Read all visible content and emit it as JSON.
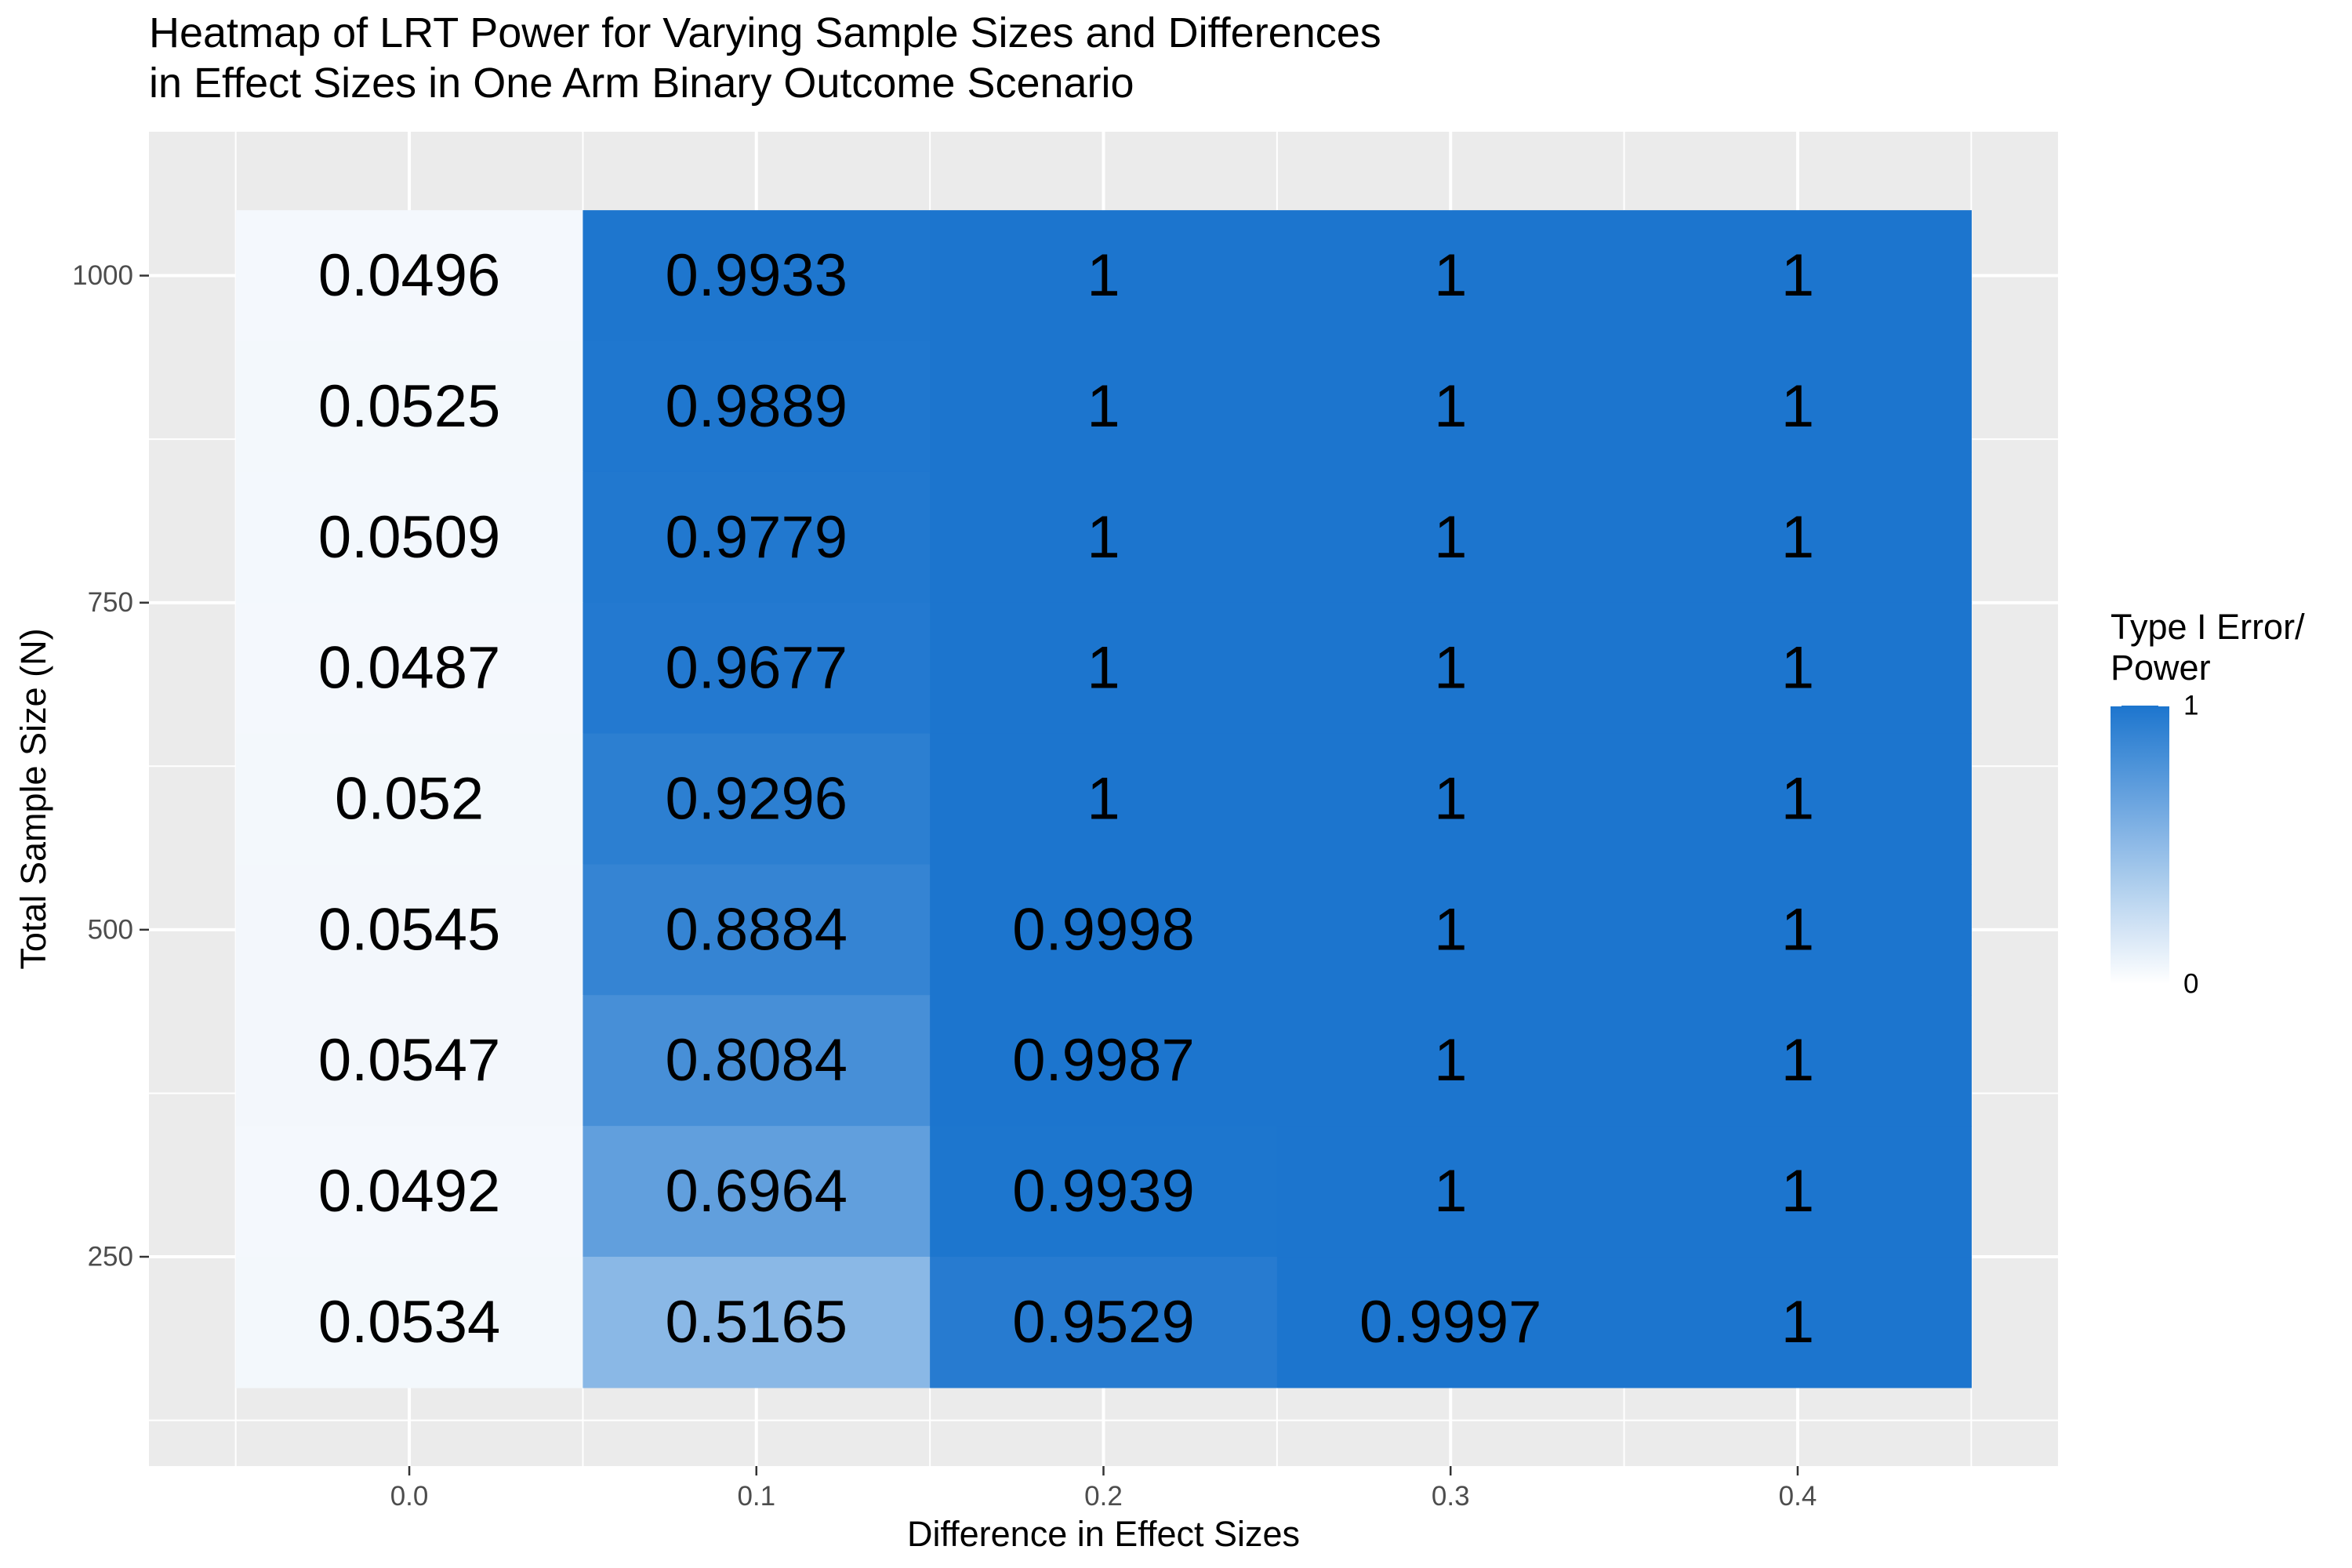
{
  "chart_data": {
    "type": "heatmap",
    "title": "Heatmap of LRT Power for Varying Sample Sizes and Differences\nin Effect Sizes in One Arm Binary Outcome Scenario",
    "xlabel": "Difference in Effect Sizes",
    "ylabel": "Total Sample Size (N)",
    "x": [
      0.0,
      0.1,
      0.2,
      0.3,
      0.4
    ],
    "x_tick_labels": [
      "0.0",
      "0.1",
      "0.2",
      "0.3",
      "0.4"
    ],
    "y": [
      200,
      300,
      400,
      500,
      600,
      700,
      800,
      900,
      1000
    ],
    "y_ticks": [
      250,
      500,
      750,
      1000
    ],
    "y_tick_labels": [
      "250",
      "500",
      "750",
      "1000"
    ],
    "xlim": [
      -0.075,
      0.475
    ],
    "ylim": [
      90,
      1110
    ],
    "cells": [
      {
        "x": 0.0,
        "y": 1000,
        "value": 0.0496,
        "label": "0.0496"
      },
      {
        "x": 0.1,
        "y": 1000,
        "value": 0.9933,
        "label": "0.9933"
      },
      {
        "x": 0.2,
        "y": 1000,
        "value": 1,
        "label": "1"
      },
      {
        "x": 0.3,
        "y": 1000,
        "value": 1,
        "label": "1"
      },
      {
        "x": 0.4,
        "y": 1000,
        "value": 1,
        "label": "1"
      },
      {
        "x": 0.0,
        "y": 900,
        "value": 0.0525,
        "label": "0.0525"
      },
      {
        "x": 0.1,
        "y": 900,
        "value": 0.9889,
        "label": "0.9889"
      },
      {
        "x": 0.2,
        "y": 900,
        "value": 1,
        "label": "1"
      },
      {
        "x": 0.3,
        "y": 900,
        "value": 1,
        "label": "1"
      },
      {
        "x": 0.4,
        "y": 900,
        "value": 1,
        "label": "1"
      },
      {
        "x": 0.0,
        "y": 800,
        "value": 0.0509,
        "label": "0.0509"
      },
      {
        "x": 0.1,
        "y": 800,
        "value": 0.9779,
        "label": "0.9779"
      },
      {
        "x": 0.2,
        "y": 800,
        "value": 1,
        "label": "1"
      },
      {
        "x": 0.3,
        "y": 800,
        "value": 1,
        "label": "1"
      },
      {
        "x": 0.4,
        "y": 800,
        "value": 1,
        "label": "1"
      },
      {
        "x": 0.0,
        "y": 700,
        "value": 0.0487,
        "label": "0.0487"
      },
      {
        "x": 0.1,
        "y": 700,
        "value": 0.9677,
        "label": "0.9677"
      },
      {
        "x": 0.2,
        "y": 700,
        "value": 1,
        "label": "1"
      },
      {
        "x": 0.3,
        "y": 700,
        "value": 1,
        "label": "1"
      },
      {
        "x": 0.4,
        "y": 700,
        "value": 1,
        "label": "1"
      },
      {
        "x": 0.0,
        "y": 600,
        "value": 0.052,
        "label": "0.052"
      },
      {
        "x": 0.1,
        "y": 600,
        "value": 0.9296,
        "label": "0.9296"
      },
      {
        "x": 0.2,
        "y": 600,
        "value": 1,
        "label": "1"
      },
      {
        "x": 0.3,
        "y": 600,
        "value": 1,
        "label": "1"
      },
      {
        "x": 0.4,
        "y": 600,
        "value": 1,
        "label": "1"
      },
      {
        "x": 0.0,
        "y": 500,
        "value": 0.0545,
        "label": "0.0545"
      },
      {
        "x": 0.1,
        "y": 500,
        "value": 0.8884,
        "label": "0.8884"
      },
      {
        "x": 0.2,
        "y": 500,
        "value": 0.9998,
        "label": "0.9998"
      },
      {
        "x": 0.3,
        "y": 500,
        "value": 1,
        "label": "1"
      },
      {
        "x": 0.4,
        "y": 500,
        "value": 1,
        "label": "1"
      },
      {
        "x": 0.0,
        "y": 400,
        "value": 0.0547,
        "label": "0.0547"
      },
      {
        "x": 0.1,
        "y": 400,
        "value": 0.8084,
        "label": "0.8084"
      },
      {
        "x": 0.2,
        "y": 400,
        "value": 0.9987,
        "label": "0.9987"
      },
      {
        "x": 0.3,
        "y": 400,
        "value": 1,
        "label": "1"
      },
      {
        "x": 0.4,
        "y": 400,
        "value": 1,
        "label": "1"
      },
      {
        "x": 0.0,
        "y": 300,
        "value": 0.0492,
        "label": "0.0492"
      },
      {
        "x": 0.1,
        "y": 300,
        "value": 0.6964,
        "label": "0.6964"
      },
      {
        "x": 0.2,
        "y": 300,
        "value": 0.9939,
        "label": "0.9939"
      },
      {
        "x": 0.3,
        "y": 300,
        "value": 1,
        "label": "1"
      },
      {
        "x": 0.4,
        "y": 300,
        "value": 1,
        "label": "1"
      },
      {
        "x": 0.0,
        "y": 200,
        "value": 0.0534,
        "label": "0.0534"
      },
      {
        "x": 0.1,
        "y": 200,
        "value": 0.5165,
        "label": "0.5165"
      },
      {
        "x": 0.2,
        "y": 200,
        "value": 0.9529,
        "label": "0.9529"
      },
      {
        "x": 0.3,
        "y": 200,
        "value": 0.9997,
        "label": "0.9997"
      },
      {
        "x": 0.4,
        "y": 200,
        "value": 1,
        "label": "1"
      }
    ],
    "legend": {
      "title": "Type I Error/\nPower",
      "min": 0,
      "max": 1,
      "min_label": "0",
      "max_label": "1",
      "low_color": "#ffffff",
      "high_color": "#1c75ce",
      "placement": "right"
    },
    "colors": {
      "panel_background": "#ebebeb",
      "grid_major": "#ffffff",
      "text": "#000000",
      "tick_text": "#4d4d4d"
    },
    "grid": true
  }
}
